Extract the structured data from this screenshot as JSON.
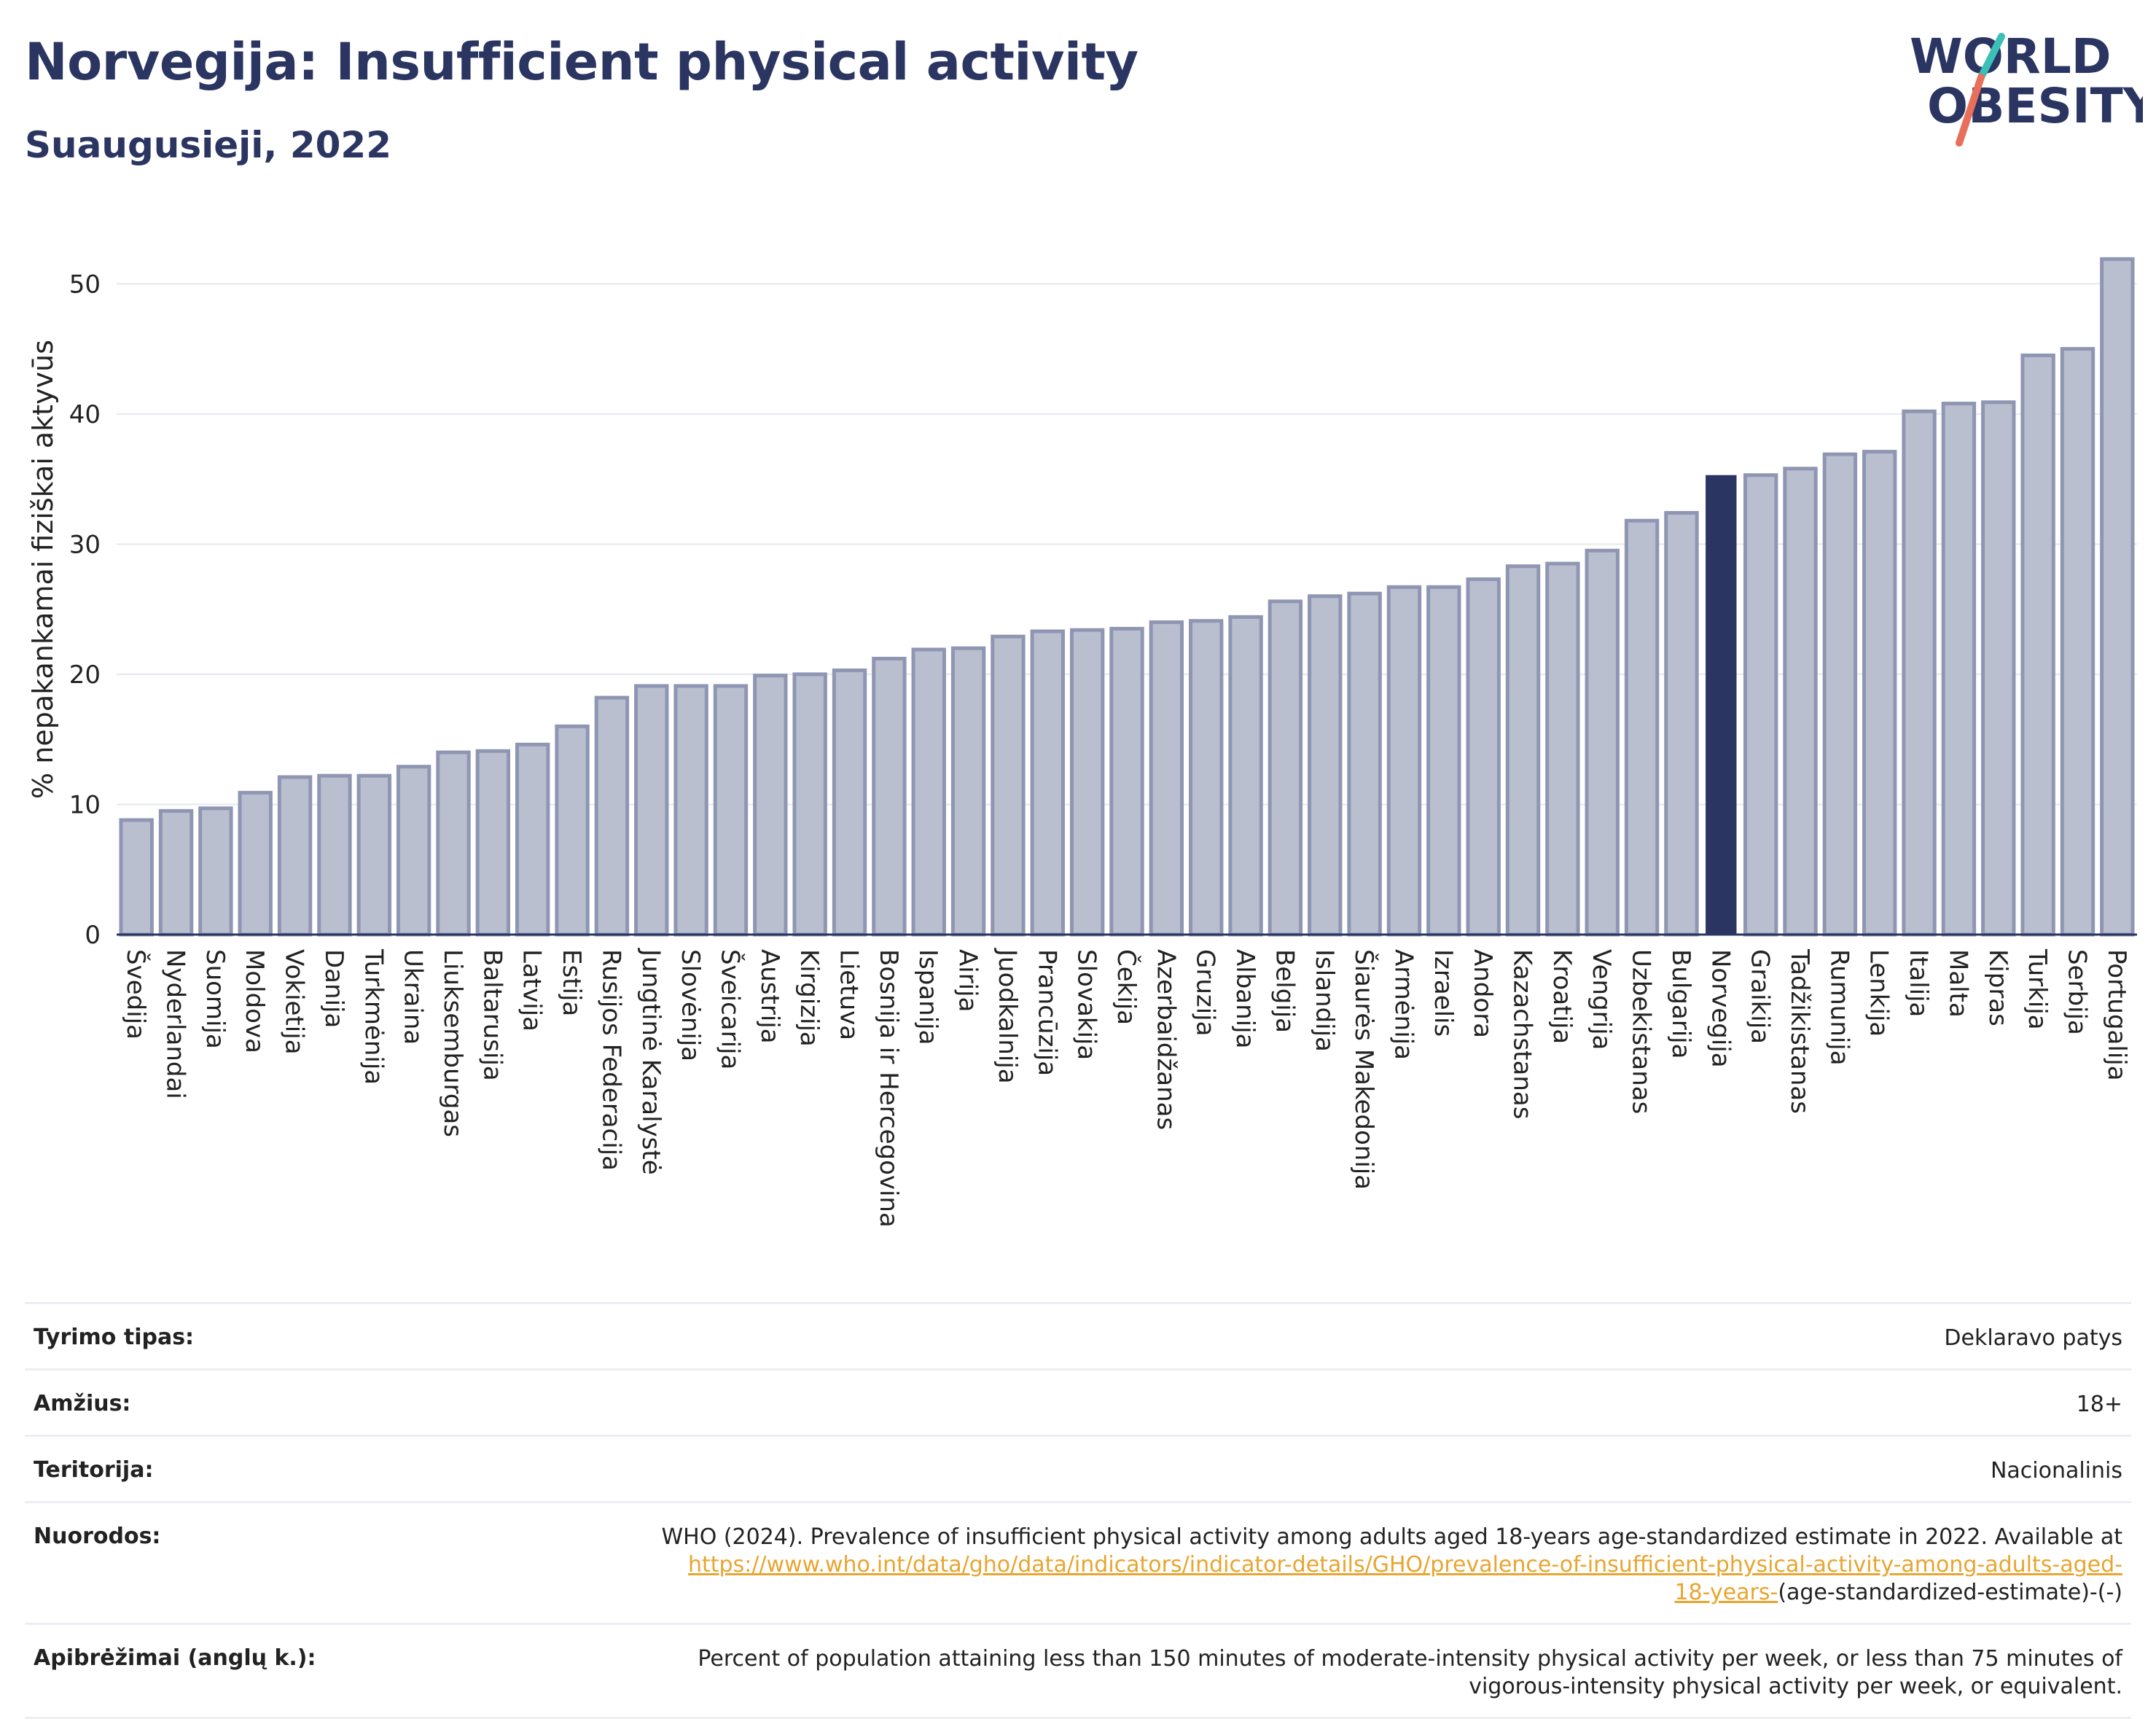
{
  "header": {
    "title": "Norvegija: Insufficient physical activity",
    "subtitle": "Suaugusieji, 2022"
  },
  "logo": {
    "line1": "WORLD",
    "line2": "OBESITY"
  },
  "colors": {
    "title": "#2b3561",
    "bar": "#b9bfcf",
    "bar_stroke": "#8f96b3",
    "highlight": "#2b3561",
    "grid": "#e6e8ef",
    "link": "#e8a530",
    "logo_slash_red": "#e8705a",
    "logo_slash_teal": "#3bbfb7"
  },
  "chart_data": {
    "type": "bar",
    "ylabel": "% nepakankamai fiziškai aktyvūs",
    "xlabel": "",
    "ylim": [
      0,
      55
    ],
    "yticks": [
      0,
      10,
      20,
      30,
      40,
      50
    ],
    "grid": true,
    "highlight": "Norvegija",
    "categories": [
      "Švedija",
      "Nyderlandai",
      "Suomija",
      "Moldova",
      "Vokietija",
      "Danija",
      "Turkmėnija",
      "Ukraina",
      "Liuksemburgas",
      "Baltarusija",
      "Latvija",
      "Estija",
      "Rusijos Federacija",
      "Jungtinė Karalystė",
      "Slovėnija",
      "Šveicarija",
      "Austrija",
      "Kirgizija",
      "Lietuva",
      "Bosnija ir Hercegovina",
      "Ispanija",
      "Airija",
      "Juodkalnija",
      "Prancūzija",
      "Slovakija",
      "Čekija",
      "Azerbaidžanas",
      "Gruzija",
      "Albanija",
      "Belgija",
      "Islandija",
      "Šiaurės Makedonija",
      "Armėnija",
      "Izraelis",
      "Andora",
      "Kazachstanas",
      "Kroatija",
      "Vengrija",
      "Uzbekistanas",
      "Bulgarija",
      "Norvegija",
      "Graikija",
      "Tadžikistanas",
      "Rumunija",
      "Lenkija",
      "Italija",
      "Malta",
      "Kipras",
      "Turkija",
      "Serbija",
      "Portugalija"
    ],
    "values": [
      8.8,
      9.5,
      9.7,
      10.9,
      12.1,
      12.2,
      12.2,
      12.9,
      14.0,
      14.1,
      14.6,
      16.0,
      18.2,
      19.1,
      19.1,
      19.1,
      19.9,
      20.0,
      20.3,
      21.2,
      21.9,
      22.0,
      22.9,
      23.3,
      23.4,
      23.5,
      24.0,
      24.1,
      24.4,
      25.6,
      26.0,
      26.2,
      26.7,
      26.7,
      27.3,
      28.3,
      28.5,
      29.5,
      31.8,
      32.4,
      35.3,
      35.3,
      35.8,
      36.9,
      37.1,
      40.2,
      40.8,
      40.9,
      44.5,
      45.0,
      51.9
    ]
  },
  "meta": {
    "rows": [
      {
        "label": "Tyrimo tipas:",
        "value": "Deklaravo patys"
      },
      {
        "label": "Amžius:",
        "value": "18+"
      },
      {
        "label": "Teritorija:",
        "value": "Nacionalinis"
      }
    ],
    "references": {
      "label": "Nuorodos:",
      "text": "WHO (2024). Prevalence of insufficient physical activity among adults aged 18-years age-standardized estimate in 2022. Available at",
      "link_a": "https://www.who.int/data/gho/data/indicators/indicator-details/GHO/prevalence-of-insufficient-physical-activity-among-adults-aged-",
      "link_b": "18-years-",
      "suffix": "(age-standardized-estimate)-(-)"
    },
    "definitions": {
      "label": "Apibrėžimai (anglų k.):",
      "line1": "Percent of population attaining less than 150 minutes of moderate-intensity physical activity per week, or less than 75 minutes of",
      "line2": "vigorous-intensity physical activity per week, or equivalent."
    }
  }
}
